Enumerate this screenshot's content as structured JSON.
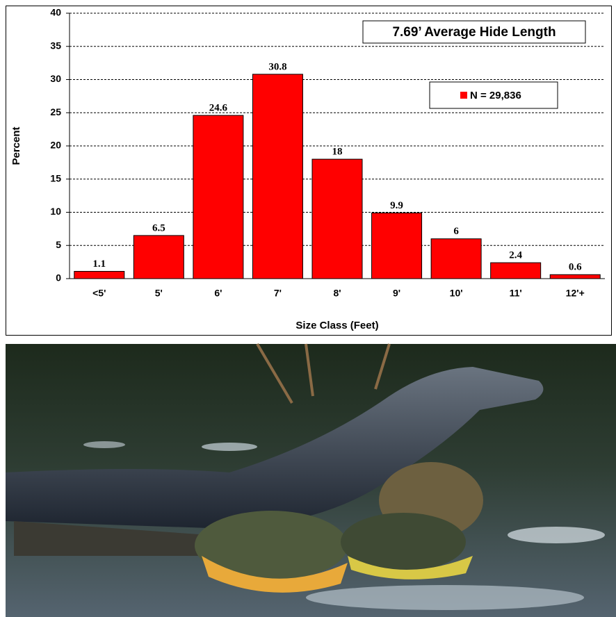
{
  "chart_data": {
    "type": "bar",
    "annotation": "7.69’ Average Hide Length",
    "x_label": "Size Class (Feet)",
    "y_label": "Percent",
    "categories": [
      "<5'",
      "5'",
      "6'",
      "7'",
      "8'",
      "9'",
      "10'",
      "11'",
      "12'+"
    ],
    "series": [
      {
        "name": "N = 29,836",
        "color": "#ff0000",
        "values": [
          1.1,
          6.5,
          24.6,
          30.8,
          18,
          9.9,
          6,
          2.4,
          0.6
        ]
      }
    ],
    "ylim": [
      0,
      40
    ],
    "yticks": [
      0,
      5,
      10,
      15,
      20,
      25,
      30,
      35,
      40
    ],
    "grid": true,
    "legend": "upper right"
  }
}
